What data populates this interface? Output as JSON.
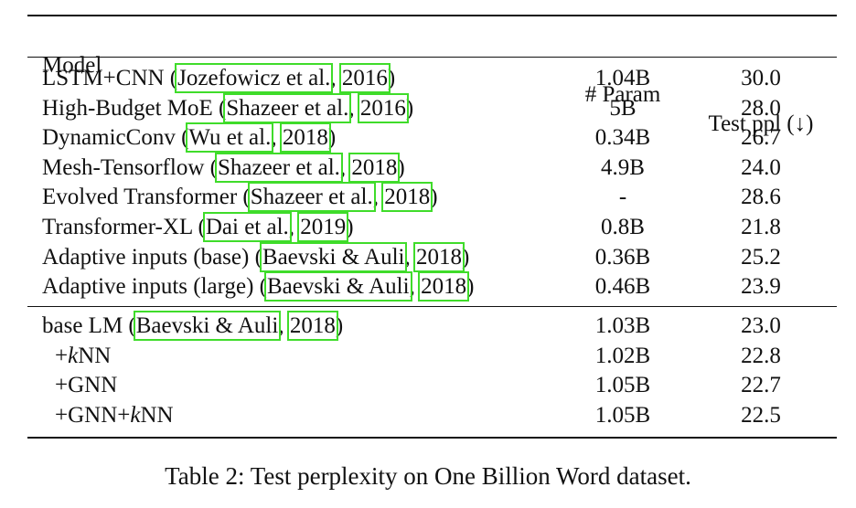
{
  "table": {
    "header": [
      "Model",
      "# Param",
      "Test ppl (↓)"
    ],
    "groups": [
      [
        {
          "model": [
            {
              "text": "LSTM+CNN ("
            },
            {
              "text": "Jozefowicz et al.",
              "cite": true
            },
            {
              "text": ", "
            },
            {
              "text": "2016",
              "cite": true
            },
            {
              "text": ")"
            }
          ],
          "params": "1.04B",
          "ppl": "30.0"
        },
        {
          "model": [
            {
              "text": "High-Budget MoE ("
            },
            {
              "text": "Shazeer et al.",
              "cite": true
            },
            {
              "text": ", "
            },
            {
              "text": "2016",
              "cite": true
            },
            {
              "text": ")"
            }
          ],
          "params": "5B",
          "ppl": "28.0"
        },
        {
          "model": [
            {
              "text": "DynamicConv ("
            },
            {
              "text": "Wu et al.",
              "cite": true
            },
            {
              "text": ", "
            },
            {
              "text": "2018",
              "cite": true
            },
            {
              "text": ")"
            }
          ],
          "params": "0.34B",
          "ppl": "26.7"
        },
        {
          "model": [
            {
              "text": "Mesh-Tensorflow ("
            },
            {
              "text": "Shazeer et al.",
              "cite": true
            },
            {
              "text": ", "
            },
            {
              "text": "2018",
              "cite": true
            },
            {
              "text": ")"
            }
          ],
          "params": "4.9B",
          "ppl": "24.0"
        },
        {
          "model": [
            {
              "text": "Evolved Transformer ("
            },
            {
              "text": "Shazeer et al.",
              "cite": true
            },
            {
              "text": ", "
            },
            {
              "text": "2018",
              "cite": true
            },
            {
              "text": ")"
            }
          ],
          "params": "-",
          "ppl": "28.6"
        },
        {
          "model": [
            {
              "text": "Transformer-XL ("
            },
            {
              "text": "Dai et al.",
              "cite": true
            },
            {
              "text": ", "
            },
            {
              "text": "2019",
              "cite": true
            },
            {
              "text": ")"
            }
          ],
          "params": "0.8B",
          "ppl": "21.8"
        },
        {
          "model": [
            {
              "text": "Adaptive inputs (base) ("
            },
            {
              "text": "Baevski & Auli",
              "cite": true
            },
            {
              "text": ", "
            },
            {
              "text": "2018",
              "cite": true
            },
            {
              "text": ")"
            }
          ],
          "params": "0.36B",
          "ppl": "25.2"
        },
        {
          "model": [
            {
              "text": "Adaptive inputs (large) ("
            },
            {
              "text": "Baevski & Auli",
              "cite": true
            },
            {
              "text": ", "
            },
            {
              "text": "2018",
              "cite": true
            },
            {
              "text": ")"
            }
          ],
          "params": "0.46B",
          "ppl": "23.9"
        }
      ],
      [
        {
          "model": [
            {
              "text": "base LM ("
            },
            {
              "text": "Baevski & Auli",
              "cite": true
            },
            {
              "text": ", "
            },
            {
              "text": "2018",
              "cite": true
            },
            {
              "text": ")"
            }
          ],
          "params": "1.03B",
          "ppl": "23.0"
        },
        {
          "model": [
            {
              "text": "+"
            },
            {
              "text": "k",
              "italic": true
            },
            {
              "text": "NN"
            }
          ],
          "indent": true,
          "params": "1.02B",
          "ppl": "22.8"
        },
        {
          "model": [
            {
              "text": "+GNN"
            }
          ],
          "indent": true,
          "params": "1.05B",
          "ppl": "22.7"
        },
        {
          "model": [
            {
              "text": "+GNN+"
            },
            {
              "text": "k",
              "italic": true
            },
            {
              "text": "NN"
            }
          ],
          "indent": true,
          "params": "1.05B",
          "ppl": "22.5"
        }
      ]
    ]
  },
  "caption": "Table 2: Test perplexity on One Billion Word dataset."
}
